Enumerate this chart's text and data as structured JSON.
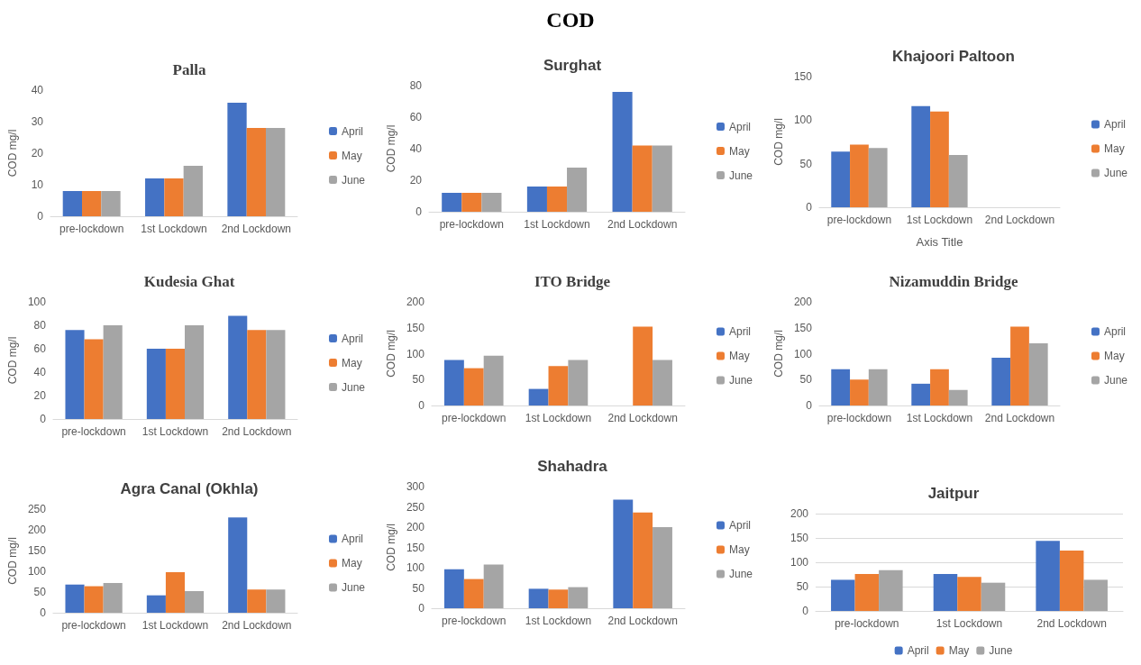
{
  "chart_data": [
    {
      "type": "other",
      "title": "COD"
    },
    {
      "type": "bar",
      "title": "Palla",
      "ylabel": "COD mg/l",
      "categories": [
        "pre-lockdown",
        "1st Lockdown",
        "2nd Lockdown"
      ],
      "series": [
        {
          "name": "April",
          "color": "#4472c4",
          "values": [
            8,
            12,
            36
          ]
        },
        {
          "name": "May",
          "color": "#ed7d31",
          "values": [
            8,
            12,
            28
          ]
        },
        {
          "name": "June",
          "color": "#a5a5a5",
          "values": [
            8,
            16,
            28
          ]
        }
      ],
      "ylim": [
        0,
        40
      ],
      "yticks": [
        0,
        10,
        20,
        30,
        40
      ],
      "grid": false,
      "legend": "right"
    },
    {
      "type": "bar",
      "title": "Surghat",
      "ylabel": "COD mg/l",
      "categories": [
        "pre-lockdown",
        "1st Lockdown",
        "2nd Lockdown"
      ],
      "series": [
        {
          "name": "April",
          "color": "#4472c4",
          "values": [
            12,
            16,
            76
          ]
        },
        {
          "name": "May",
          "color": "#ed7d31",
          "values": [
            12,
            16,
            42
          ]
        },
        {
          "name": "June",
          "color": "#a5a5a5",
          "values": [
            12,
            28,
            42
          ]
        }
      ],
      "ylim": [
        0,
        80
      ],
      "yticks": [
        0,
        20,
        40,
        60,
        80
      ],
      "grid": false,
      "legend": "right"
    },
    {
      "type": "bar",
      "title": "Khajoori Paltoon",
      "xlabel": "Axis Title",
      "ylabel": "COD mg/l",
      "categories": [
        "pre-lockdown",
        "1st Lockdown",
        "2nd Lockdown"
      ],
      "series": [
        {
          "name": "April",
          "color": "#4472c4",
          "values": [
            64,
            116,
            null
          ]
        },
        {
          "name": "May",
          "color": "#ed7d31",
          "values": [
            72,
            110,
            null
          ]
        },
        {
          "name": "June",
          "color": "#a5a5a5",
          "values": [
            68,
            60,
            null
          ]
        }
      ],
      "ylim": [
        0,
        150
      ],
      "yticks": [
        0,
        50,
        100,
        150
      ],
      "grid": false,
      "legend": "right"
    },
    {
      "type": "bar",
      "title": "Kudesia Ghat",
      "ylabel": "COD mg/l",
      "categories": [
        "pre-lockdown",
        "1st Lockdown",
        "2nd Lockdown"
      ],
      "series": [
        {
          "name": "April",
          "color": "#4472c4",
          "values": [
            76,
            60,
            88
          ]
        },
        {
          "name": "May",
          "color": "#ed7d31",
          "values": [
            68,
            60,
            76
          ]
        },
        {
          "name": "June",
          "color": "#a5a5a5",
          "values": [
            80,
            80,
            76
          ]
        }
      ],
      "ylim": [
        0,
        100
      ],
      "yticks": [
        0,
        20,
        40,
        60,
        80,
        100
      ],
      "grid": false,
      "legend": "right"
    },
    {
      "type": "bar",
      "title": "ITO Bridge",
      "ylabel": "COD mg/l",
      "categories": [
        "pre-lockdown",
        "1st Lockdown",
        "2nd Lockdown"
      ],
      "series": [
        {
          "name": "April",
          "color": "#4472c4",
          "values": [
            88,
            32,
            null
          ]
        },
        {
          "name": "May",
          "color": "#ed7d31",
          "values": [
            72,
            76,
            152
          ]
        },
        {
          "name": "June",
          "color": "#a5a5a5",
          "values": [
            96,
            88,
            88
          ]
        }
      ],
      "ylim": [
        0,
        200
      ],
      "yticks": [
        0,
        50,
        100,
        150,
        200
      ],
      "grid": false,
      "legend": "right"
    },
    {
      "type": "bar",
      "title": "Nizamuddin Bridge",
      "ylabel": "COD mg/l",
      "categories": [
        "pre-lockdown",
        "1st Lockdown",
        "2nd Lockdown"
      ],
      "series": [
        {
          "name": "April",
          "color": "#4472c4",
          "values": [
            70,
            42,
            92
          ]
        },
        {
          "name": "May",
          "color": "#ed7d31",
          "values": [
            50,
            70,
            152
          ]
        },
        {
          "name": "June",
          "color": "#a5a5a5",
          "values": [
            70,
            30,
            120
          ]
        }
      ],
      "ylim": [
        0,
        200
      ],
      "yticks": [
        0,
        50,
        100,
        150,
        200
      ],
      "grid": false,
      "legend": "right"
    },
    {
      "type": "bar",
      "title": "Agra Canal (Okhla)",
      "ylabel": "COD mg/l",
      "categories": [
        "pre-lockdown",
        "1st Lockdown",
        "2nd Lockdown"
      ],
      "series": [
        {
          "name": "April",
          "color": "#4472c4",
          "values": [
            68,
            42,
            230
          ]
        },
        {
          "name": "May",
          "color": "#ed7d31",
          "values": [
            64,
            98,
            56
          ]
        },
        {
          "name": "June",
          "color": "#a5a5a5",
          "values": [
            72,
            52,
            56
          ]
        }
      ],
      "ylim": [
        0,
        250
      ],
      "yticks": [
        0,
        50,
        100,
        150,
        200,
        250
      ],
      "grid": false,
      "legend": "right"
    },
    {
      "type": "bar",
      "title": "Shahadra",
      "ylabel": "COD mg/l",
      "categories": [
        "pre-lockdown",
        "1st Lockdown",
        "2nd Lockdown"
      ],
      "series": [
        {
          "name": "April",
          "color": "#4472c4",
          "values": [
            96,
            48,
            268
          ]
        },
        {
          "name": "May",
          "color": "#ed7d31",
          "values": [
            72,
            46,
            236
          ]
        },
        {
          "name": "June",
          "color": "#a5a5a5",
          "values": [
            108,
            52,
            200
          ]
        }
      ],
      "ylim": [
        0,
        300
      ],
      "yticks": [
        0,
        50,
        100,
        150,
        200,
        250,
        300
      ],
      "grid": false,
      "legend": "right"
    },
    {
      "type": "bar",
      "title": "Jaitpur",
      "categories": [
        "pre-lockdown",
        "1st Lockdown",
        "2nd Lockdown"
      ],
      "series": [
        {
          "name": "April",
          "color": "#4472c4",
          "values": [
            64,
            76,
            144
          ]
        },
        {
          "name": "May",
          "color": "#ed7d31",
          "values": [
            76,
            70,
            124
          ]
        },
        {
          "name": "June",
          "color": "#a5a5a5",
          "values": [
            84,
            58,
            64
          ]
        }
      ],
      "ylim": [
        0,
        200
      ],
      "yticks": [
        0,
        50,
        100,
        150,
        200
      ],
      "grid": "y",
      "legend": "bottom"
    }
  ]
}
